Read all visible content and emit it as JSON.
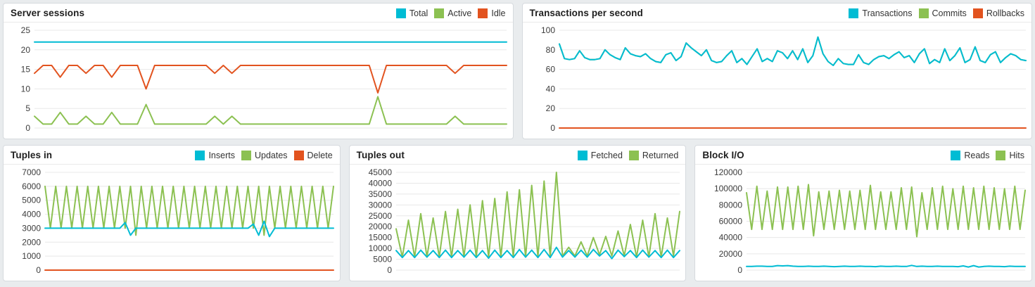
{
  "colors": {
    "accent_cyan": "#00bcd4",
    "accent_green": "#8cc152",
    "accent_red": "#e2531f",
    "grid": "#e8e8e8",
    "page_bg": "#e9ecee"
  },
  "chart_data": [
    {
      "type": "line",
      "title": "Server sessions",
      "ylim": [
        0,
        25
      ],
      "ticks": [
        0,
        5,
        10,
        15,
        20,
        25
      ],
      "grid": true,
      "legend_position": "top-right",
      "draw_order": [
        0,
        1,
        2
      ],
      "series": [
        {
          "name": "Total",
          "color": "#00bcd4",
          "values": 22
        },
        {
          "name": "Active",
          "color": "#8cc152",
          "values": [
            3,
            1,
            1,
            4,
            1,
            1,
            3,
            1,
            1,
            4,
            1,
            1,
            1,
            6,
            1,
            1,
            1,
            1,
            1,
            1,
            1,
            3,
            1,
            3,
            1,
            1,
            1,
            1,
            1,
            1,
            1,
            1,
            1,
            1,
            1,
            1,
            1,
            1,
            1,
            1,
            8,
            1,
            1,
            1,
            1,
            1,
            1,
            1,
            1,
            3,
            1,
            1,
            1,
            1,
            1,
            1
          ]
        },
        {
          "name": "Idle",
          "color": "#e2531f",
          "values": [
            14,
            16,
            16,
            13,
            16,
            16,
            14,
            16,
            16,
            13,
            16,
            16,
            16,
            10,
            16,
            16,
            16,
            16,
            16,
            16,
            16,
            14,
            16,
            14,
            16,
            16,
            16,
            16,
            16,
            16,
            16,
            16,
            16,
            16,
            16,
            16,
            16,
            16,
            16,
            16,
            9,
            16,
            16,
            16,
            16,
            16,
            16,
            16,
            16,
            14,
            16,
            16,
            16,
            16,
            16,
            16
          ]
        }
      ]
    },
    {
      "type": "line",
      "title": "Transactions per second",
      "ylim": [
        0,
        100
      ],
      "ticks": [
        0,
        20,
        40,
        60,
        80,
        100
      ],
      "grid": true,
      "legend_position": "top-right",
      "draw_order": [
        1,
        0,
        2
      ],
      "series": [
        {
          "name": "Transactions",
          "color": "#00bcd4",
          "values": [
            86,
            71,
            70,
            71,
            79,
            72,
            70,
            70,
            71,
            80,
            75,
            72,
            70,
            82,
            76,
            74,
            73,
            76,
            71,
            68,
            67,
            75,
            77,
            69,
            73,
            87,
            82,
            78,
            74,
            80,
            69,
            67,
            68,
            74,
            79,
            67,
            71,
            65,
            73,
            81,
            68,
            71,
            68,
            79,
            77,
            71,
            79,
            70,
            81,
            67,
            74,
            93,
            76,
            68,
            64,
            71,
            66,
            65,
            65,
            75,
            67,
            65,
            70,
            73,
            74,
            71,
            75,
            78,
            72,
            74,
            67,
            76,
            81,
            66,
            70,
            67,
            81,
            69,
            74,
            82,
            67,
            70,
            83,
            69,
            67,
            75,
            78,
            67,
            72,
            76,
            74,
            70,
            69
          ]
        },
        {
          "name": "Commits",
          "color": "#8cc152",
          "values": [
            86,
            71,
            70,
            71,
            79,
            72,
            70,
            70,
            71,
            80,
            75,
            72,
            70,
            82,
            76,
            74,
            73,
            76,
            71,
            68,
            67,
            75,
            77,
            69,
            73,
            87,
            82,
            78,
            74,
            80,
            69,
            67,
            68,
            74,
            79,
            67,
            71,
            65,
            73,
            81,
            68,
            71,
            68,
            79,
            77,
            71,
            79,
            70,
            81,
            67,
            74,
            93,
            76,
            68,
            64,
            71,
            66,
            65,
            65,
            75,
            67,
            65,
            70,
            73,
            74,
            71,
            75,
            78,
            72,
            74,
            67,
            76,
            81,
            66,
            70,
            67,
            81,
            69,
            74,
            82,
            67,
            70,
            83,
            69,
            67,
            75,
            78,
            67,
            72,
            76,
            74,
            70,
            69
          ]
        },
        {
          "name": "Rollbacks",
          "color": "#e2531f",
          "values": 0
        }
      ]
    },
    {
      "type": "line",
      "title": "Tuples in",
      "ylim": [
        0,
        7000
      ],
      "ticks": [
        0,
        1000,
        2000,
        3000,
        4000,
        5000,
        6000,
        7000
      ],
      "grid": true,
      "legend_position": "top-right",
      "draw_order": [
        1,
        0,
        2
      ],
      "series": [
        {
          "name": "Inserts",
          "color": "#00bcd4",
          "values": [
            3000,
            3000,
            3000,
            3000,
            3000,
            3000,
            3000,
            3000,
            3000,
            3000,
            3000,
            3000,
            3000,
            3000,
            3000,
            3400,
            2500,
            3000,
            3000,
            3000,
            3000,
            3000,
            3000,
            3000,
            3000,
            3000,
            3000,
            3000,
            3000,
            3000,
            3000,
            3000,
            3000,
            3000,
            3000,
            3000,
            3000,
            3000,
            3000,
            3300,
            2500,
            3500,
            2400,
            3000,
            3000,
            3000,
            3000,
            3000,
            3000,
            3000,
            3000,
            3000,
            3000,
            3000,
            3000
          ]
        },
        {
          "name": "Updates",
          "color": "#8cc152",
          "values": [
            6000,
            3000,
            6000,
            3000,
            6000,
            3000,
            6000,
            3000,
            6000,
            3000,
            6000,
            3000,
            6000,
            3000,
            6000,
            3000,
            6000,
            2500,
            6000,
            3000,
            6000,
            3000,
            6000,
            3000,
            6000,
            3000,
            6000,
            3000,
            6000,
            3000,
            6000,
            3000,
            6000,
            3000,
            6000,
            3000,
            6000,
            3000,
            6000,
            3000,
            6000,
            2500,
            6000,
            3000,
            6000,
            3000,
            6000,
            3000,
            6000,
            3000,
            6000,
            3000,
            6000,
            3000,
            6000
          ]
        },
        {
          "name": "Delete",
          "color": "#e2531f",
          "values": 0
        }
      ]
    },
    {
      "type": "line",
      "title": "Tuples out",
      "ylim": [
        0,
        45000
      ],
      "ticks": [
        0,
        5000,
        10000,
        15000,
        20000,
        25000,
        30000,
        35000,
        40000,
        45000
      ],
      "grid": true,
      "legend_position": "top-right",
      "draw_order": [
        1,
        0
      ],
      "series": [
        {
          "name": "Fetched",
          "color": "#00bcd4",
          "values": [
            9000,
            5800,
            9000,
            5800,
            9200,
            6000,
            9000,
            5800,
            9200,
            5800,
            9000,
            6000,
            9200,
            5800,
            9000,
            5500,
            9200,
            5800,
            9000,
            5800,
            9500,
            6000,
            9200,
            5800,
            9500,
            5800,
            10500,
            6000,
            9000,
            6000,
            9200,
            6000,
            9500,
            6500,
            9000,
            5300,
            9200,
            6200,
            9000,
            5800,
            9200,
            6000,
            9000,
            5800,
            9200,
            5800,
            9000
          ]
        },
        {
          "name": "Returned",
          "color": "#8cc152",
          "values": [
            19000,
            6000,
            23000,
            6000,
            26000,
            6000,
            24000,
            6000,
            27000,
            6000,
            28000,
            6000,
            30000,
            6000,
            32000,
            6000,
            33000,
            6000,
            36000,
            6000,
            37000,
            6000,
            39000,
            6000,
            41000,
            6000,
            45000,
            6500,
            10500,
            6500,
            13000,
            6500,
            15000,
            7000,
            15500,
            6500,
            18000,
            6500,
            21000,
            6000,
            23000,
            6000,
            26000,
            6000,
            24000,
            6500,
            27000
          ]
        }
      ]
    },
    {
      "type": "line",
      "title": "Block I/O",
      "ylim": [
        0,
        120000
      ],
      "ticks": [
        0,
        20000,
        40000,
        60000,
        80000,
        100000,
        120000
      ],
      "grid": true,
      "legend_position": "top-right",
      "draw_order": [
        1,
        0
      ],
      "series": [
        {
          "name": "Reads",
          "color": "#00bcd4",
          "values": [
            4500,
            4500,
            4800,
            4800,
            4500,
            4600,
            5500,
            5200,
            5500,
            4800,
            4500,
            4500,
            4800,
            4500,
            4500,
            4800,
            4500,
            4200,
            4500,
            4800,
            4500,
            4500,
            4800,
            4500,
            4500,
            4200,
            4800,
            4500,
            4500,
            4800,
            4500,
            4500,
            5800,
            4500,
            4800,
            4500,
            4500,
            4800,
            4500,
            4500,
            4500,
            4200,
            5200,
            3800,
            5500,
            3800,
            4500,
            4800,
            4500,
            4500,
            4200,
            4800,
            4500,
            4500,
            4500
          ]
        },
        {
          "name": "Hits",
          "color": "#8cc152",
          "values": [
            95000,
            50000,
            103000,
            50000,
            97000,
            50000,
            102000,
            50000,
            102000,
            50000,
            103000,
            50000,
            105000,
            42000,
            96000,
            50000,
            97000,
            50000,
            98000,
            50000,
            97000,
            50000,
            98000,
            50000,
            104000,
            50000,
            96000,
            50000,
            96000,
            50000,
            101000,
            50000,
            102000,
            41000,
            95000,
            50000,
            101000,
            50000,
            103000,
            50000,
            100000,
            50000,
            103000,
            50000,
            101000,
            50000,
            103000,
            50000,
            101000,
            50000,
            100000,
            50000,
            103000,
            50000,
            98000
          ]
        }
      ]
    }
  ]
}
